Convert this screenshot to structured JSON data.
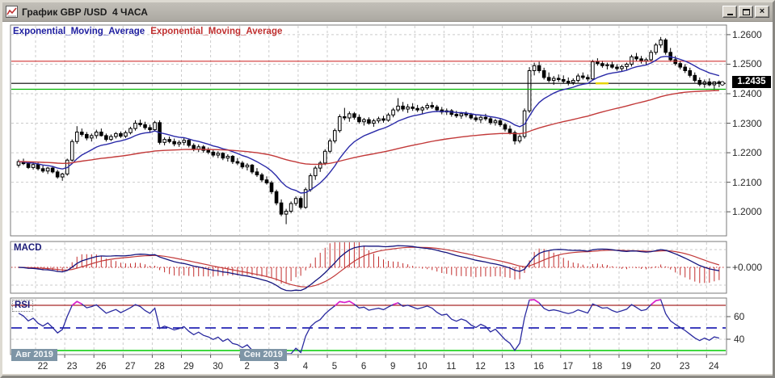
{
  "window": {
    "title": "График GBP /USD  4 ЧАСА",
    "buttons": {
      "minimize": "minimize",
      "maximize": "maximize",
      "close": "×"
    }
  },
  "legend": {
    "ema_fast_label": "Exponential_Moving_Average",
    "ema_slow_label": "Exponential_Moving_Average"
  },
  "price_axis": {
    "current": "1.2435",
    "ticks": [
      {
        "label": "1.2600",
        "value": 1.26
      },
      {
        "label": "1.2500",
        "value": 1.25
      },
      {
        "label": "1.2400",
        "value": 1.24
      },
      {
        "label": "1.2300",
        "value": 1.23
      },
      {
        "label": "1.2200",
        "value": 1.22
      },
      {
        "label": "1.2100",
        "value": 1.21
      },
      {
        "label": "1.2000",
        "value": 1.2
      }
    ]
  },
  "x_axis": {
    "days": [
      "22",
      "23",
      "26",
      "27",
      "28",
      "29",
      "30",
      "2",
      "3",
      "4",
      "5",
      "6",
      "9",
      "10",
      "11",
      "12",
      "13",
      "16",
      "17",
      "18",
      "19",
      "20",
      "23",
      "24"
    ],
    "month_badges": [
      {
        "label": "Авг 2019",
        "day_index": 0
      },
      {
        "label": "Сен 2019",
        "day_index": 7
      }
    ]
  },
  "panels": {
    "macd": {
      "label": "MACD",
      "level_label": "+0.000"
    },
    "rsi": {
      "label": "RSI",
      "tick_60": "60",
      "tick_40": "40"
    }
  },
  "colors": {
    "ema_fast": "#2A2AA8",
    "ema_slow": "#C23939",
    "level_red": "#D03434",
    "level_black": "#000000",
    "level_green": "#00B400",
    "level_yellow": "#E6D400",
    "macd_line": "#14147E",
    "macd_signal": "#C23939",
    "macd_hist": "#C22E2E",
    "rsi_line": "#2A2AA0",
    "rsi_overbought": "#DD22CC",
    "rsi_level_top": "#A82828",
    "rsi_level_mid": "#0000A8",
    "rsi_level_bottom": "#00CC00",
    "grid": "#CBCBCB",
    "panel_border": "#7A7A7A",
    "badge_bg": "#000000",
    "month_badge_bg": "#7E95A6"
  },
  "chart_data": [
    {
      "type": "candlestick",
      "symbol": "GBP/USD",
      "timeframe": "4H",
      "title": "График GBP /USD 4 ЧАСА",
      "candles_per_day": 6,
      "lead_in_candles": 4,
      "days": [
        "22",
        "23",
        "26",
        "27",
        "28",
        "29",
        "30",
        "2",
        "3",
        "4",
        "5",
        "6",
        "9",
        "10",
        "11",
        "12",
        "13",
        "16",
        "17",
        "18",
        "19",
        "20",
        "23",
        "24"
      ],
      "yticks": [
        1.26,
        1.25,
        1.24,
        1.23,
        1.22,
        1.21,
        1.2
      ],
      "ylim": [
        1.1945,
        1.263
      ],
      "levels": [
        {
          "value": 1.251,
          "color": "#D03434"
        },
        {
          "value": 1.2435,
          "color": "#000000"
        },
        {
          "value": 1.2415,
          "color": "#00B400"
        }
      ],
      "overlays": [
        {
          "name": "Exponential_Moving_Average",
          "type": "ema",
          "period": 12,
          "color": "#2A2AA8"
        },
        {
          "name": "Exponential_Moving_Average",
          "type": "ema",
          "period": 72,
          "color": "#C23939"
        }
      ],
      "ohlc": [
        [
          1.2158,
          1.2177,
          1.215,
          1.217
        ],
        [
          1.217,
          1.218,
          1.2158,
          1.2163
        ],
        [
          1.2163,
          1.217,
          1.2145,
          1.215
        ],
        [
          1.215,
          1.2168,
          1.2143,
          1.216
        ],
        [
          1.216,
          1.2166,
          1.214,
          1.2146
        ],
        [
          1.2146,
          1.2158,
          1.2132,
          1.2138
        ],
        [
          1.2138,
          1.2152,
          1.2128,
          1.2148
        ],
        [
          1.2148,
          1.2155,
          1.213,
          1.2135
        ],
        [
          1.2135,
          1.2142,
          1.2112,
          1.2118
        ],
        [
          1.2118,
          1.2132,
          1.2105,
          1.2128
        ],
        [
          1.2128,
          1.218,
          1.2122,
          1.2175
        ],
        [
          1.2175,
          1.2245,
          1.217,
          1.2238
        ],
        [
          1.2238,
          1.229,
          1.223,
          1.227
        ],
        [
          1.227,
          1.2282,
          1.2255,
          1.2262
        ],
        [
          1.2262,
          1.227,
          1.2242,
          1.225
        ],
        [
          1.225,
          1.2265,
          1.2238,
          1.2258
        ],
        [
          1.2258,
          1.2278,
          1.2248,
          1.227
        ],
        [
          1.227,
          1.2282,
          1.2255,
          1.2258
        ],
        [
          1.2258,
          1.2265,
          1.2238,
          1.2245
        ],
        [
          1.2245,
          1.2262,
          1.224,
          1.2255
        ],
        [
          1.2255,
          1.227,
          1.2248,
          1.2265
        ],
        [
          1.2265,
          1.2272,
          1.225,
          1.2256
        ],
        [
          1.2256,
          1.2275,
          1.225,
          1.2268
        ],
        [
          1.2268,
          1.2288,
          1.2262,
          1.2282
        ],
        [
          1.2282,
          1.231,
          1.2275,
          1.23
        ],
        [
          1.23,
          1.2312,
          1.2288,
          1.2295
        ],
        [
          1.2295,
          1.2305,
          1.2278,
          1.2285
        ],
        [
          1.2285,
          1.2295,
          1.227,
          1.2278
        ],
        [
          1.2278,
          1.2308,
          1.2272,
          1.2302
        ],
        [
          1.2302,
          1.231,
          1.2228,
          1.2235
        ],
        [
          1.2235,
          1.2252,
          1.2225,
          1.2245
        ],
        [
          1.2245,
          1.2255,
          1.2232,
          1.2238
        ],
        [
          1.2238,
          1.2248,
          1.2222,
          1.223
        ],
        [
          1.223,
          1.2242,
          1.222,
          1.2235
        ],
        [
          1.2235,
          1.225,
          1.2225,
          1.2242
        ],
        [
          1.2242,
          1.2248,
          1.2218,
          1.2225
        ],
        [
          1.2225,
          1.2232,
          1.2205,
          1.2212
        ],
        [
          1.2212,
          1.2228,
          1.2202,
          1.222
        ],
        [
          1.222,
          1.2226,
          1.22,
          1.2208
        ],
        [
          1.2208,
          1.2218,
          1.2195,
          1.2202
        ],
        [
          1.2202,
          1.221,
          1.2185,
          1.2192
        ],
        [
          1.2192,
          1.2205,
          1.2182,
          1.2198
        ],
        [
          1.2198,
          1.2202,
          1.2175,
          1.2182
        ],
        [
          1.2182,
          1.2195,
          1.217,
          1.2188
        ],
        [
          1.2188,
          1.2192,
          1.2162,
          1.217
        ],
        [
          1.217,
          1.2182,
          1.2158,
          1.2165
        ],
        [
          1.2165,
          1.2172,
          1.2145,
          1.2152
        ],
        [
          1.2152,
          1.2165,
          1.214,
          1.2158
        ],
        [
          1.2158,
          1.2162,
          1.2128,
          1.2135
        ],
        [
          1.2135,
          1.2148,
          1.2118,
          1.2125
        ],
        [
          1.2125,
          1.2132,
          1.21,
          1.2108
        ],
        [
          1.2108,
          1.212,
          1.2092,
          1.2098
        ],
        [
          1.2098,
          1.2105,
          1.206,
          1.2068
        ],
        [
          1.2068,
          1.2075,
          1.2022,
          1.203
        ],
        [
          1.203,
          1.2042,
          1.1985,
          1.1992
        ],
        [
          1.1992,
          1.201,
          1.1958,
          1.2002
        ],
        [
          1.2002,
          1.2035,
          1.1995,
          1.2028
        ],
        [
          1.2028,
          1.2052,
          1.202,
          1.2045
        ],
        [
          1.2045,
          1.2052,
          1.2008,
          1.2015
        ],
        [
          1.2015,
          1.2082,
          1.201,
          1.2075
        ],
        [
          1.2075,
          1.213,
          1.2068,
          1.2122
        ],
        [
          1.2122,
          1.2155,
          1.2108,
          1.2148
        ],
        [
          1.2148,
          1.2172,
          1.2135,
          1.2165
        ],
        [
          1.2165,
          1.2212,
          1.2158,
          1.2205
        ],
        [
          1.2205,
          1.2248,
          1.2198,
          1.224
        ],
        [
          1.224,
          1.2282,
          1.2232,
          1.2275
        ],
        [
          1.2275,
          1.233,
          1.2268,
          1.2322
        ],
        [
          1.2322,
          1.2352,
          1.231,
          1.2318
        ],
        [
          1.2318,
          1.234,
          1.2305,
          1.2332
        ],
        [
          1.2332,
          1.2338,
          1.2312,
          1.232
        ],
        [
          1.232,
          1.233,
          1.2298,
          1.2305
        ],
        [
          1.2305,
          1.2318,
          1.2292,
          1.2312
        ],
        [
          1.2312,
          1.232,
          1.2295,
          1.23
        ],
        [
          1.23,
          1.2315,
          1.2288,
          1.2308
        ],
        [
          1.2308,
          1.2322,
          1.23,
          1.2315
        ],
        [
          1.2315,
          1.2325,
          1.2302,
          1.231
        ],
        [
          1.231,
          1.2335,
          1.2305,
          1.2328
        ],
        [
          1.2328,
          1.2352,
          1.232,
          1.2345
        ],
        [
          1.2345,
          1.2385,
          1.2338,
          1.2358
        ],
        [
          1.2358,
          1.2372,
          1.234,
          1.2348
        ],
        [
          1.2348,
          1.2365,
          1.2335,
          1.2355
        ],
        [
          1.2355,
          1.2368,
          1.2342,
          1.235
        ],
        [
          1.235,
          1.2362,
          1.2338,
          1.2345
        ],
        [
          1.2345,
          1.2358,
          1.2332,
          1.2352
        ],
        [
          1.2352,
          1.2368,
          1.2345,
          1.236
        ],
        [
          1.236,
          1.2372,
          1.2348,
          1.2355
        ],
        [
          1.2355,
          1.2362,
          1.2338,
          1.2345
        ],
        [
          1.2345,
          1.2355,
          1.233,
          1.2338
        ],
        [
          1.2338,
          1.235,
          1.2328,
          1.2342
        ],
        [
          1.2342,
          1.2348,
          1.2322,
          1.233
        ],
        [
          1.233,
          1.2342,
          1.2318,
          1.2325
        ],
        [
          1.2325,
          1.2338,
          1.2315,
          1.2332
        ],
        [
          1.2332,
          1.234,
          1.232,
          1.2328
        ],
        [
          1.2328,
          1.2335,
          1.2312,
          1.2318
        ],
        [
          1.2318,
          1.233,
          1.2305,
          1.2312
        ],
        [
          1.2312,
          1.2325,
          1.23,
          1.232
        ],
        [
          1.232,
          1.2332,
          1.2308,
          1.2315
        ],
        [
          1.2315,
          1.2322,
          1.2295,
          1.2302
        ],
        [
          1.2302,
          1.2315,
          1.2292,
          1.2308
        ],
        [
          1.2308,
          1.2315,
          1.2288,
          1.2295
        ],
        [
          1.2295,
          1.2302,
          1.2272,
          1.228
        ],
        [
          1.228,
          1.2292,
          1.2262,
          1.2268
        ],
        [
          1.2268,
          1.2275,
          1.2228,
          1.224
        ],
        [
          1.224,
          1.2262,
          1.2232,
          1.2255
        ],
        [
          1.2255,
          1.235,
          1.2248,
          1.2342
        ],
        [
          1.2342,
          1.249,
          1.2335,
          1.2478
        ],
        [
          1.2478,
          1.2505,
          1.2462,
          1.2495
        ],
        [
          1.2495,
          1.2508,
          1.247,
          1.2478
        ],
        [
          1.2478,
          1.2488,
          1.2448,
          1.2455
        ],
        [
          1.2455,
          1.2472,
          1.2438,
          1.2445
        ],
        [
          1.2445,
          1.246,
          1.243,
          1.2452
        ],
        [
          1.2452,
          1.2465,
          1.244,
          1.2448
        ],
        [
          1.2448,
          1.2462,
          1.2435,
          1.2442
        ],
        [
          1.2442,
          1.2455,
          1.2428,
          1.2438
        ],
        [
          1.2438,
          1.2452,
          1.243,
          1.2445
        ],
        [
          1.2445,
          1.2468,
          1.2438,
          1.246
        ],
        [
          1.246,
          1.2472,
          1.2448,
          1.2455
        ],
        [
          1.2455,
          1.2465,
          1.2442,
          1.245
        ],
        [
          1.245,
          1.2515,
          1.2445,
          1.2508
        ],
        [
          1.2508,
          1.252,
          1.2495,
          1.2502
        ],
        [
          1.2502,
          1.2512,
          1.2488,
          1.2495
        ],
        [
          1.2495,
          1.2505,
          1.2482,
          1.2498
        ],
        [
          1.2498,
          1.2508,
          1.2485,
          1.249
        ],
        [
          1.249,
          1.25,
          1.2478,
          1.2485
        ],
        [
          1.2485,
          1.2498,
          1.2475,
          1.2492
        ],
        [
          1.2492,
          1.2505,
          1.248,
          1.25
        ],
        [
          1.25,
          1.2532,
          1.2492,
          1.2525
        ],
        [
          1.2525,
          1.2538,
          1.251,
          1.2518
        ],
        [
          1.2518,
          1.2528,
          1.2502,
          1.251
        ],
        [
          1.251,
          1.2522,
          1.2498,
          1.2515
        ],
        [
          1.2515,
          1.2548,
          1.2508,
          1.254
        ],
        [
          1.254,
          1.2572,
          1.2532,
          1.2565
        ],
        [
          1.2565,
          1.2592,
          1.2555,
          1.2582
        ],
        [
          1.2582,
          1.2588,
          1.2532,
          1.254
        ],
        [
          1.254,
          1.2555,
          1.2508,
          1.2515
        ],
        [
          1.2515,
          1.2528,
          1.2495,
          1.2502
        ],
        [
          1.2502,
          1.2512,
          1.2482,
          1.249
        ],
        [
          1.249,
          1.25,
          1.247,
          1.2478
        ],
        [
          1.2478,
          1.2488,
          1.2455,
          1.2462
        ],
        [
          1.2462,
          1.2472,
          1.2438,
          1.2445
        ],
        [
          1.2445,
          1.2455,
          1.2425,
          1.2432
        ],
        [
          1.2432,
          1.2448,
          1.242,
          1.244
        ],
        [
          1.244,
          1.2452,
          1.2425,
          1.243
        ],
        [
          1.243,
          1.2442,
          1.2412,
          1.244
        ],
        [
          1.244,
          1.2445,
          1.2422,
          1.2435
        ]
      ]
    },
    {
      "type": "line",
      "name": "MACD",
      "panel": "macd",
      "params": {
        "fast": 12,
        "slow": 26,
        "signal": 9
      },
      "zero_level": 0,
      "level_label": "+0.000",
      "colors": {
        "macd": "#14147E",
        "signal": "#C23939",
        "histogram": "#C22E2E"
      }
    },
    {
      "type": "line",
      "name": "RSI",
      "panel": "rsi",
      "params": {
        "period": 14
      },
      "levels": [
        70,
        50,
        30
      ],
      "yticks": [
        60,
        40
      ],
      "colors": {
        "line": "#2A2AA0",
        "overbought": "#DD22CC"
      }
    }
  ]
}
